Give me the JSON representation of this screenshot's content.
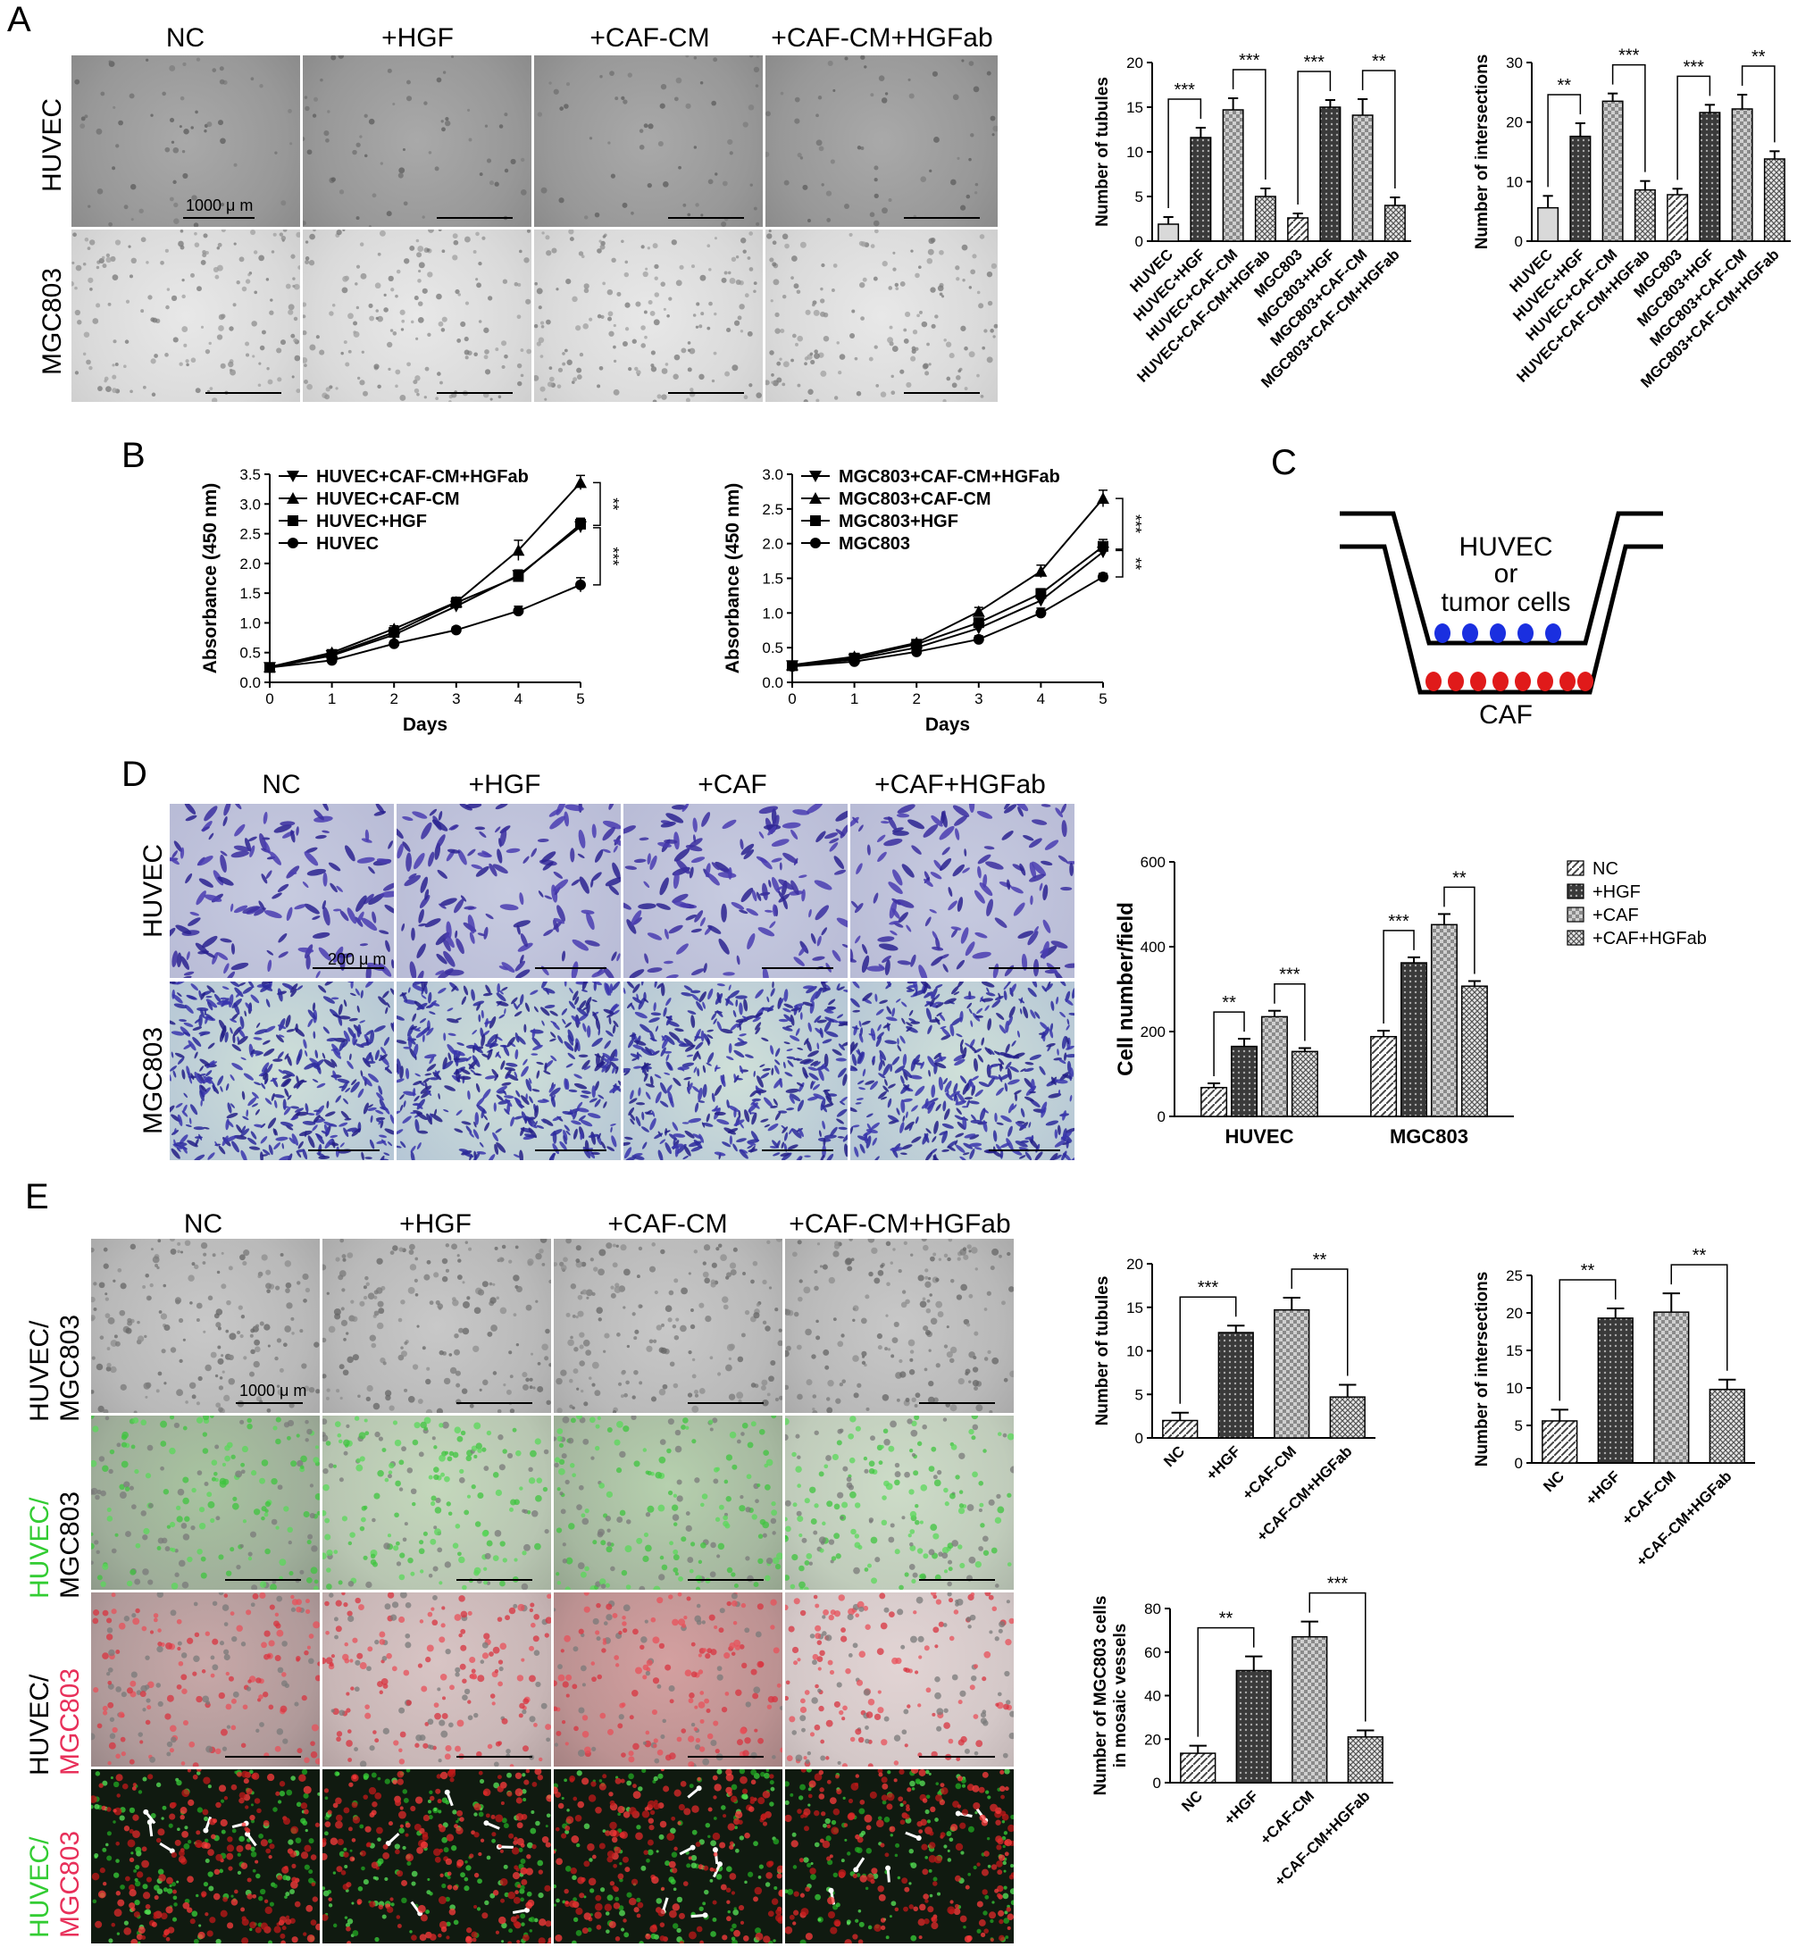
{
  "panel_letters": {
    "A": "A",
    "B": "B",
    "C": "C",
    "D": "D",
    "E": "E"
  },
  "panel_A": {
    "col_headers": [
      "NC",
      "+HGF",
      "+CAF-CM",
      "+CAF-CM+HGFab"
    ],
    "row_headers": [
      "HUVEC",
      "MGC803"
    ],
    "scale_label": "1000 μ m"
  },
  "panel_D": {
    "col_headers": [
      "NC",
      "+HGF",
      "+CAF",
      "+CAF+HGFab"
    ],
    "row_headers": [
      "HUVEC",
      "MGC803"
    ],
    "scale_label": "200 μ m"
  },
  "panel_E": {
    "col_headers": [
      "NC",
      "+HGF",
      "+CAF-CM",
      "+CAF-CM+HGFab"
    ],
    "row_headers": [
      {
        "a": "HUVEC/",
        "b": "MGC803"
      },
      {
        "a": "HUVEC/",
        "b": "MGC803"
      },
      {
        "a": "HUVEC/",
        "b": "MGC803"
      },
      {
        "a": "HUVEC/",
        "b": "MGC803"
      }
    ],
    "scale_label": "1000 μ m"
  },
  "panel_C": {
    "top_text": [
      "HUVEC",
      "or",
      "tumor cells"
    ],
    "bottom_text": "CAF",
    "colors": {
      "top_cells": "#1a2fe0",
      "bottom_cells": "#e01a1a"
    }
  },
  "chart_data": [
    {
      "id": "A-tubules",
      "type": "bar",
      "ylabel": "Number of tubules",
      "ylim": [
        0,
        20
      ],
      "yticks": [
        0,
        5,
        10,
        15,
        20
      ],
      "categories": [
        "HUVEC",
        "HUVEC+HGF",
        "HUVEC+CAF-CM",
        "HUVEC+CAF-CM+HGFab",
        "MGC803",
        "MGC803+HGF",
        "MGC803+CAF-CM",
        "MGC803+CAF-CM+HGFab"
      ],
      "values": [
        1.9,
        11.6,
        14.7,
        5.0,
        2.6,
        15.0,
        14.1,
        4.0
      ],
      "errors": [
        0.8,
        1.1,
        1.3,
        0.9,
        0.5,
        0.8,
        1.8,
        0.9
      ],
      "patterns": [
        "plain",
        "dense",
        "check",
        "grid",
        "hatch",
        "dense",
        "check",
        "grid"
      ],
      "sig": [
        {
          "a": 0,
          "b": 1,
          "label": "***"
        },
        {
          "a": 2,
          "b": 3,
          "label": "***"
        },
        {
          "a": 4,
          "b": 5,
          "label": "***"
        },
        {
          "a": 6,
          "b": 7,
          "label": "**"
        }
      ]
    },
    {
      "id": "A-intersections",
      "type": "bar",
      "ylabel": "Number of intersections",
      "ylim": [
        0,
        30
      ],
      "yticks": [
        0,
        10,
        20,
        30
      ],
      "categories": [
        "HUVEC",
        "HUVEC+HGF",
        "HUVEC+CAF-CM",
        "HUVEC+CAF-CM+HGFab",
        "MGC803",
        "MGC803+HGF",
        "MGC803+CAF-CM",
        "MGC803+CAF-CM+HGFab"
      ],
      "values": [
        5.6,
        17.6,
        23.5,
        8.6,
        7.8,
        21.6,
        22.2,
        13.8
      ],
      "errors": [
        2.0,
        2.2,
        1.3,
        1.5,
        1.0,
        1.3,
        2.4,
        1.3
      ],
      "patterns": [
        "plain",
        "dense",
        "check",
        "grid",
        "hatch",
        "dense",
        "check",
        "grid"
      ],
      "sig": [
        {
          "a": 0,
          "b": 1,
          "label": "**"
        },
        {
          "a": 2,
          "b": 3,
          "label": "***"
        },
        {
          "a": 4,
          "b": 5,
          "label": "***"
        },
        {
          "a": 6,
          "b": 7,
          "label": "**"
        }
      ]
    },
    {
      "id": "B-huvec",
      "type": "line",
      "ylabel": "Absorbance (450 nm)",
      "xlabel": "Days",
      "xlim": [
        0,
        5
      ],
      "ylim": [
        0,
        3.5
      ],
      "xticks": [
        0,
        1,
        2,
        3,
        4,
        5
      ],
      "yticks": [
        0,
        0.5,
        1.0,
        1.5,
        2.0,
        2.5,
        3.0,
        3.5
      ],
      "series": [
        {
          "name": "HUVEC+CAF-CM+HGFab",
          "marker": "tri-down",
          "x": [
            0,
            1,
            2,
            3,
            4,
            5
          ],
          "y": [
            0.25,
            0.45,
            0.8,
            1.28,
            1.8,
            2.62
          ],
          "err": [
            0.03,
            0.04,
            0.05,
            0.07,
            0.09,
            0.1
          ]
        },
        {
          "name": "HUVEC+CAF-CM",
          "marker": "tri-up",
          "x": [
            0,
            1,
            2,
            3,
            4,
            5
          ],
          "y": [
            0.26,
            0.5,
            0.9,
            1.35,
            2.22,
            3.36
          ],
          "err": [
            0.03,
            0.04,
            0.05,
            0.08,
            0.17,
            0.12
          ]
        },
        {
          "name": "HUVEC+HGF",
          "marker": "square",
          "x": [
            0,
            1,
            2,
            3,
            4,
            5
          ],
          "y": [
            0.25,
            0.47,
            0.84,
            1.34,
            1.78,
            2.66
          ],
          "err": [
            0.03,
            0.04,
            0.05,
            0.07,
            0.07,
            0.1
          ]
        },
        {
          "name": "HUVEC",
          "marker": "circle",
          "x": [
            0,
            1,
            2,
            3,
            4,
            5
          ],
          "y": [
            0.25,
            0.37,
            0.65,
            0.88,
            1.2,
            1.64
          ],
          "err": [
            0.03,
            0.03,
            0.04,
            0.05,
            0.08,
            0.12
          ]
        }
      ],
      "sig": [
        {
          "label": "**",
          "y1": 3.36,
          "y2": 2.64
        },
        {
          "label": "***",
          "y1": 2.6,
          "y2": 1.64
        }
      ]
    },
    {
      "id": "B-mgc",
      "type": "line",
      "ylabel": "Absorbance (450 nm)",
      "xlabel": "Days",
      "xlim": [
        0,
        5
      ],
      "ylim": [
        0,
        3.0
      ],
      "xticks": [
        0,
        1,
        2,
        3,
        4,
        5
      ],
      "yticks": [
        0,
        0.5,
        1.0,
        1.5,
        2.0,
        2.5,
        3.0
      ],
      "series": [
        {
          "name": "MGC803+CAF-CM+HGFab",
          "marker": "tri-down",
          "x": [
            0,
            1,
            2,
            3,
            4,
            5
          ],
          "y": [
            0.24,
            0.33,
            0.5,
            0.78,
            1.18,
            1.88
          ],
          "err": [
            0.02,
            0.03,
            0.04,
            0.05,
            0.06,
            0.08
          ]
        },
        {
          "name": "MGC803+CAF-CM",
          "marker": "tri-up",
          "x": [
            0,
            1,
            2,
            3,
            4,
            5
          ],
          "y": [
            0.25,
            0.37,
            0.57,
            1.02,
            1.6,
            2.65
          ],
          "err": [
            0.02,
            0.03,
            0.04,
            0.06,
            0.09,
            0.12
          ]
        },
        {
          "name": "MGC803+HGF",
          "marker": "square",
          "x": [
            0,
            1,
            2,
            3,
            4,
            5
          ],
          "y": [
            0.24,
            0.35,
            0.55,
            0.86,
            1.28,
            1.96
          ],
          "err": [
            0.02,
            0.03,
            0.04,
            0.05,
            0.07,
            0.1
          ]
        },
        {
          "name": "MGC803",
          "marker": "circle",
          "x": [
            0,
            1,
            2,
            3,
            4,
            5
          ],
          "y": [
            0.23,
            0.3,
            0.44,
            0.62,
            1.0,
            1.52
          ],
          "err": [
            0.02,
            0.03,
            0.03,
            0.05,
            0.07,
            0.05
          ]
        }
      ],
      "sig": [
        {
          "label": "***",
          "y1": 2.65,
          "y2": 1.92
        },
        {
          "label": "**",
          "y1": 1.9,
          "y2": 1.52
        }
      ]
    },
    {
      "id": "D-cells",
      "type": "bar",
      "ylabel": "Cell number/field",
      "ylim": [
        0,
        600
      ],
      "yticks": [
        0,
        200,
        400,
        600
      ],
      "groups": [
        "HUVEC",
        "MGC803"
      ],
      "series": [
        {
          "name": "NC",
          "pattern": "hatch",
          "values": [
            68,
            188
          ],
          "errors": [
            10,
            14
          ]
        },
        {
          "name": "+HGF",
          "pattern": "dense",
          "values": [
            165,
            362
          ],
          "errors": [
            18,
            13
          ]
        },
        {
          "name": "+CAF",
          "pattern": "check",
          "values": [
            235,
            452
          ],
          "errors": [
            14,
            25
          ]
        },
        {
          "name": "+CAF+HGFab",
          "pattern": "grid",
          "values": [
            153,
            307
          ],
          "errors": [
            8,
            12
          ]
        }
      ],
      "sig": [
        {
          "group": 0,
          "a": 0,
          "b": 1,
          "label": "**"
        },
        {
          "group": 0,
          "a": 2,
          "b": 3,
          "label": "***"
        },
        {
          "group": 1,
          "a": 0,
          "b": 1,
          "label": "***"
        },
        {
          "group": 1,
          "a": 2,
          "b": 3,
          "label": "**"
        }
      ]
    },
    {
      "id": "E-tubules",
      "type": "bar",
      "ylabel": "Number of tubules",
      "ylim": [
        0,
        20
      ],
      "yticks": [
        0,
        5,
        10,
        15,
        20
      ],
      "categories": [
        "NC",
        "+HGF",
        "+CAF-CM",
        "+CAF-CM+HGFab"
      ],
      "values": [
        2.0,
        12.1,
        14.7,
        4.7
      ],
      "errors": [
        0.9,
        0.8,
        1.4,
        1.4
      ],
      "patterns": [
        "hatch",
        "dense",
        "check",
        "grid"
      ],
      "sig": [
        {
          "a": 0,
          "b": 1,
          "label": "***"
        },
        {
          "a": 2,
          "b": 3,
          "label": "**"
        }
      ]
    },
    {
      "id": "E-intersections",
      "type": "bar",
      "ylabel": "Number of intersections",
      "ylim": [
        0,
        25
      ],
      "yticks": [
        0,
        5,
        10,
        15,
        20,
        25
      ],
      "categories": [
        "NC",
        "+HGF",
        "+CAF-CM",
        "+CAF-CM+HGFab"
      ],
      "values": [
        5.6,
        19.3,
        20.1,
        9.8
      ],
      "errors": [
        1.5,
        1.3,
        2.5,
        1.3
      ],
      "patterns": [
        "hatch",
        "dense",
        "check",
        "grid"
      ],
      "sig": [
        {
          "a": 0,
          "b": 1,
          "label": "**"
        },
        {
          "a": 2,
          "b": 3,
          "label": "**"
        }
      ]
    },
    {
      "id": "E-mosaic",
      "type": "bar",
      "ylabel": [
        "Number of MGC803 cells",
        "in mosaic vessels"
      ],
      "ylim": [
        0,
        80
      ],
      "yticks": [
        0,
        20,
        40,
        60,
        80
      ],
      "categories": [
        "NC",
        "+HGF",
        "+CAF-CM",
        "+CAF-CM+HGFab"
      ],
      "values": [
        13.5,
        51.5,
        67,
        21
      ],
      "errors": [
        3.5,
        6.5,
        7.0,
        3.0
      ],
      "patterns": [
        "hatch",
        "dense",
        "check",
        "grid"
      ],
      "sig": [
        {
          "a": 0,
          "b": 1,
          "label": "**"
        },
        {
          "a": 2,
          "b": 3,
          "label": "***"
        }
      ]
    }
  ]
}
